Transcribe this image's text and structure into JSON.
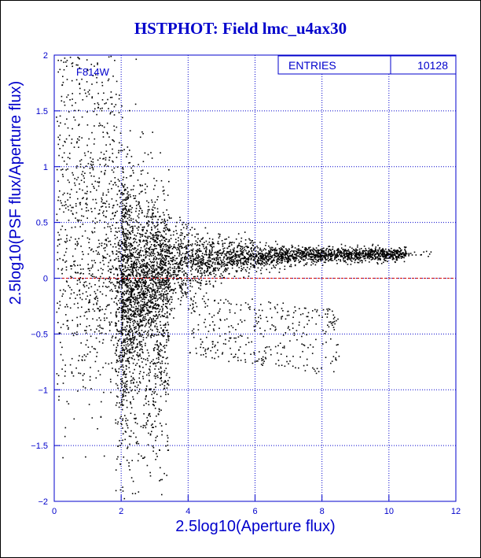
{
  "chart_data": {
    "type": "scatter",
    "title": "HSTPHOT: Field lmc_u4ax30",
    "filter_label": "F814W",
    "stats_box": {
      "label": "ENTRIES",
      "value": "10128"
    },
    "xlabel": "2.5log10(Aperture flux)",
    "ylabel": "2.5log10(PSF flux/Aperture flux)",
    "xlim": [
      0,
      12
    ],
    "ylim": [
      -2,
      2
    ],
    "x_ticks": [
      "0",
      "2",
      "4",
      "6",
      "8",
      "10",
      "12"
    ],
    "y_ticks": [
      "-2",
      "-1.5",
      "-1",
      "-0.5",
      "0",
      "0.5",
      "1",
      "1.5",
      "2"
    ],
    "grid": true,
    "reference_line_y": 0,
    "colors": {
      "axis": "#0000cc",
      "grid": "#0000cc",
      "points": "#000000",
      "reference_line": "#cc0000",
      "title": "#0000cc"
    },
    "series": [
      {
        "points_description_note": "",
        "values_summary": {
          "cluster_x_range": [
            2,
            9
          ],
          "cluster_y_center": [
            0.0,
            0.25
          ],
          "tail_x_range": [
            9,
            11.3
          ],
          "tail_y": 0.22
        }
      }
    ]
  }
}
